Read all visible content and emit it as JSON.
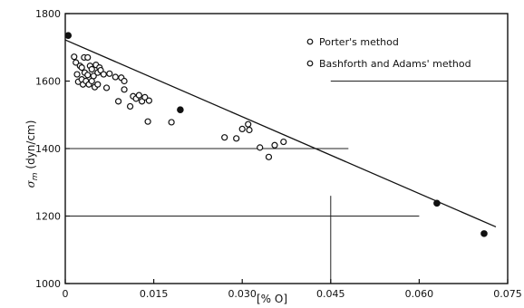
{
  "chart_data": {
    "type": "scatter",
    "xlabel": "[% O]",
    "ylabel_symbol": "σ",
    "ylabel_subscript": "m",
    "ylabel_unit": "(dyn/cm)",
    "xlim": [
      0,
      0.075
    ],
    "ylim": [
      1000,
      1800
    ],
    "xticks": [
      0,
      0.015,
      0.03,
      0.045,
      0.06,
      0.075
    ],
    "xtick_labels": [
      "0",
      "0.015",
      "0.030",
      "0.045",
      "0.060",
      "0.075"
    ],
    "yticks": [
      1000,
      1200,
      1400,
      1600,
      1800
    ],
    "ytick_labels": [
      "1000",
      "1200",
      "1400",
      "1600",
      "1800"
    ],
    "grid": "partial",
    "legend": {
      "placement": "top-right",
      "entries": [
        "Porter's method",
        "Bashforth and Adams' method"
      ]
    },
    "series": [
      {
        "name": "Porter's method",
        "marker": "filled-circle",
        "x": [
          0.0005,
          0.0195,
          0.063,
          0.071
        ],
        "y": [
          1735,
          1515,
          1238,
          1148
        ]
      },
      {
        "name": "Bashforth and Adams' method",
        "marker": "open-circle",
        "x": [
          0.0015,
          0.0018,
          0.002,
          0.0022,
          0.0025,
          0.0028,
          0.0028,
          0.003,
          0.0032,
          0.0033,
          0.0035,
          0.0038,
          0.0038,
          0.004,
          0.0042,
          0.0045,
          0.0045,
          0.0048,
          0.005,
          0.0052,
          0.0055,
          0.0055,
          0.0058,
          0.006,
          0.0065,
          0.007,
          0.0075,
          0.0085,
          0.009,
          0.0095,
          0.01,
          0.01,
          0.011,
          0.0115,
          0.012,
          0.0125,
          0.013,
          0.0135,
          0.014,
          0.0142,
          0.018,
          0.027,
          0.029,
          0.03,
          0.031,
          0.0312,
          0.033,
          0.0345,
          0.0355,
          0.037
        ],
        "y": [
          1672,
          1655,
          1620,
          1598,
          1645,
          1640,
          1605,
          1590,
          1670,
          1625,
          1600,
          1670,
          1618,
          1590,
          1645,
          1635,
          1600,
          1615,
          1582,
          1648,
          1625,
          1590,
          1640,
          1632,
          1620,
          1580,
          1622,
          1612,
          1540,
          1610,
          1575,
          1600,
          1525,
          1555,
          1548,
          1558,
          1540,
          1552,
          1480,
          1542,
          1478,
          1433,
          1430,
          1458,
          1472,
          1455,
          1403,
          1375,
          1410,
          1420
        ]
      }
    ],
    "fit_line": {
      "x": [
        0,
        0.073
      ],
      "y": [
        1722,
        1168
      ]
    }
  }
}
